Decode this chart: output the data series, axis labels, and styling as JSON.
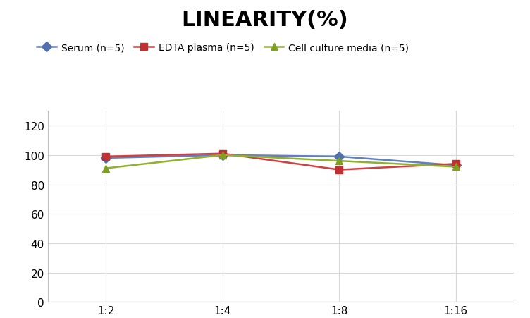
{
  "title": "LINEARITY(%)",
  "title_fontsize": 22,
  "title_fontweight": "bold",
  "x_labels": [
    "1:2",
    "1:4",
    "1:8",
    "1:16"
  ],
  "x_positions": [
    0,
    1,
    2,
    3
  ],
  "series": [
    {
      "label": "Serum (n=5)",
      "color": "#6080c0",
      "marker": "D",
      "marker_color": "#5070b0",
      "values": [
        98,
        100,
        99,
        93
      ]
    },
    {
      "label": "EDTA plasma (n=5)",
      "color": "#d04040",
      "marker": "s",
      "marker_color": "#c03030",
      "values": [
        99,
        101,
        90,
        94
      ]
    },
    {
      "label": "Cell culture media (n=5)",
      "color": "#90b030",
      "marker": "^",
      "marker_color": "#80a020",
      "values": [
        91,
        100,
        96,
        92
      ]
    }
  ],
  "ylim": [
    0,
    130
  ],
  "yticks": [
    0,
    20,
    40,
    60,
    80,
    100,
    120
  ],
  "grid_color": "#d8d8d8",
  "background_color": "#ffffff",
  "legend_fontsize": 10,
  "tick_fontsize": 11,
  "marker_size": 7,
  "linewidth": 1.8,
  "fig_width": 7.52,
  "fig_height": 4.52,
  "dpi": 100
}
